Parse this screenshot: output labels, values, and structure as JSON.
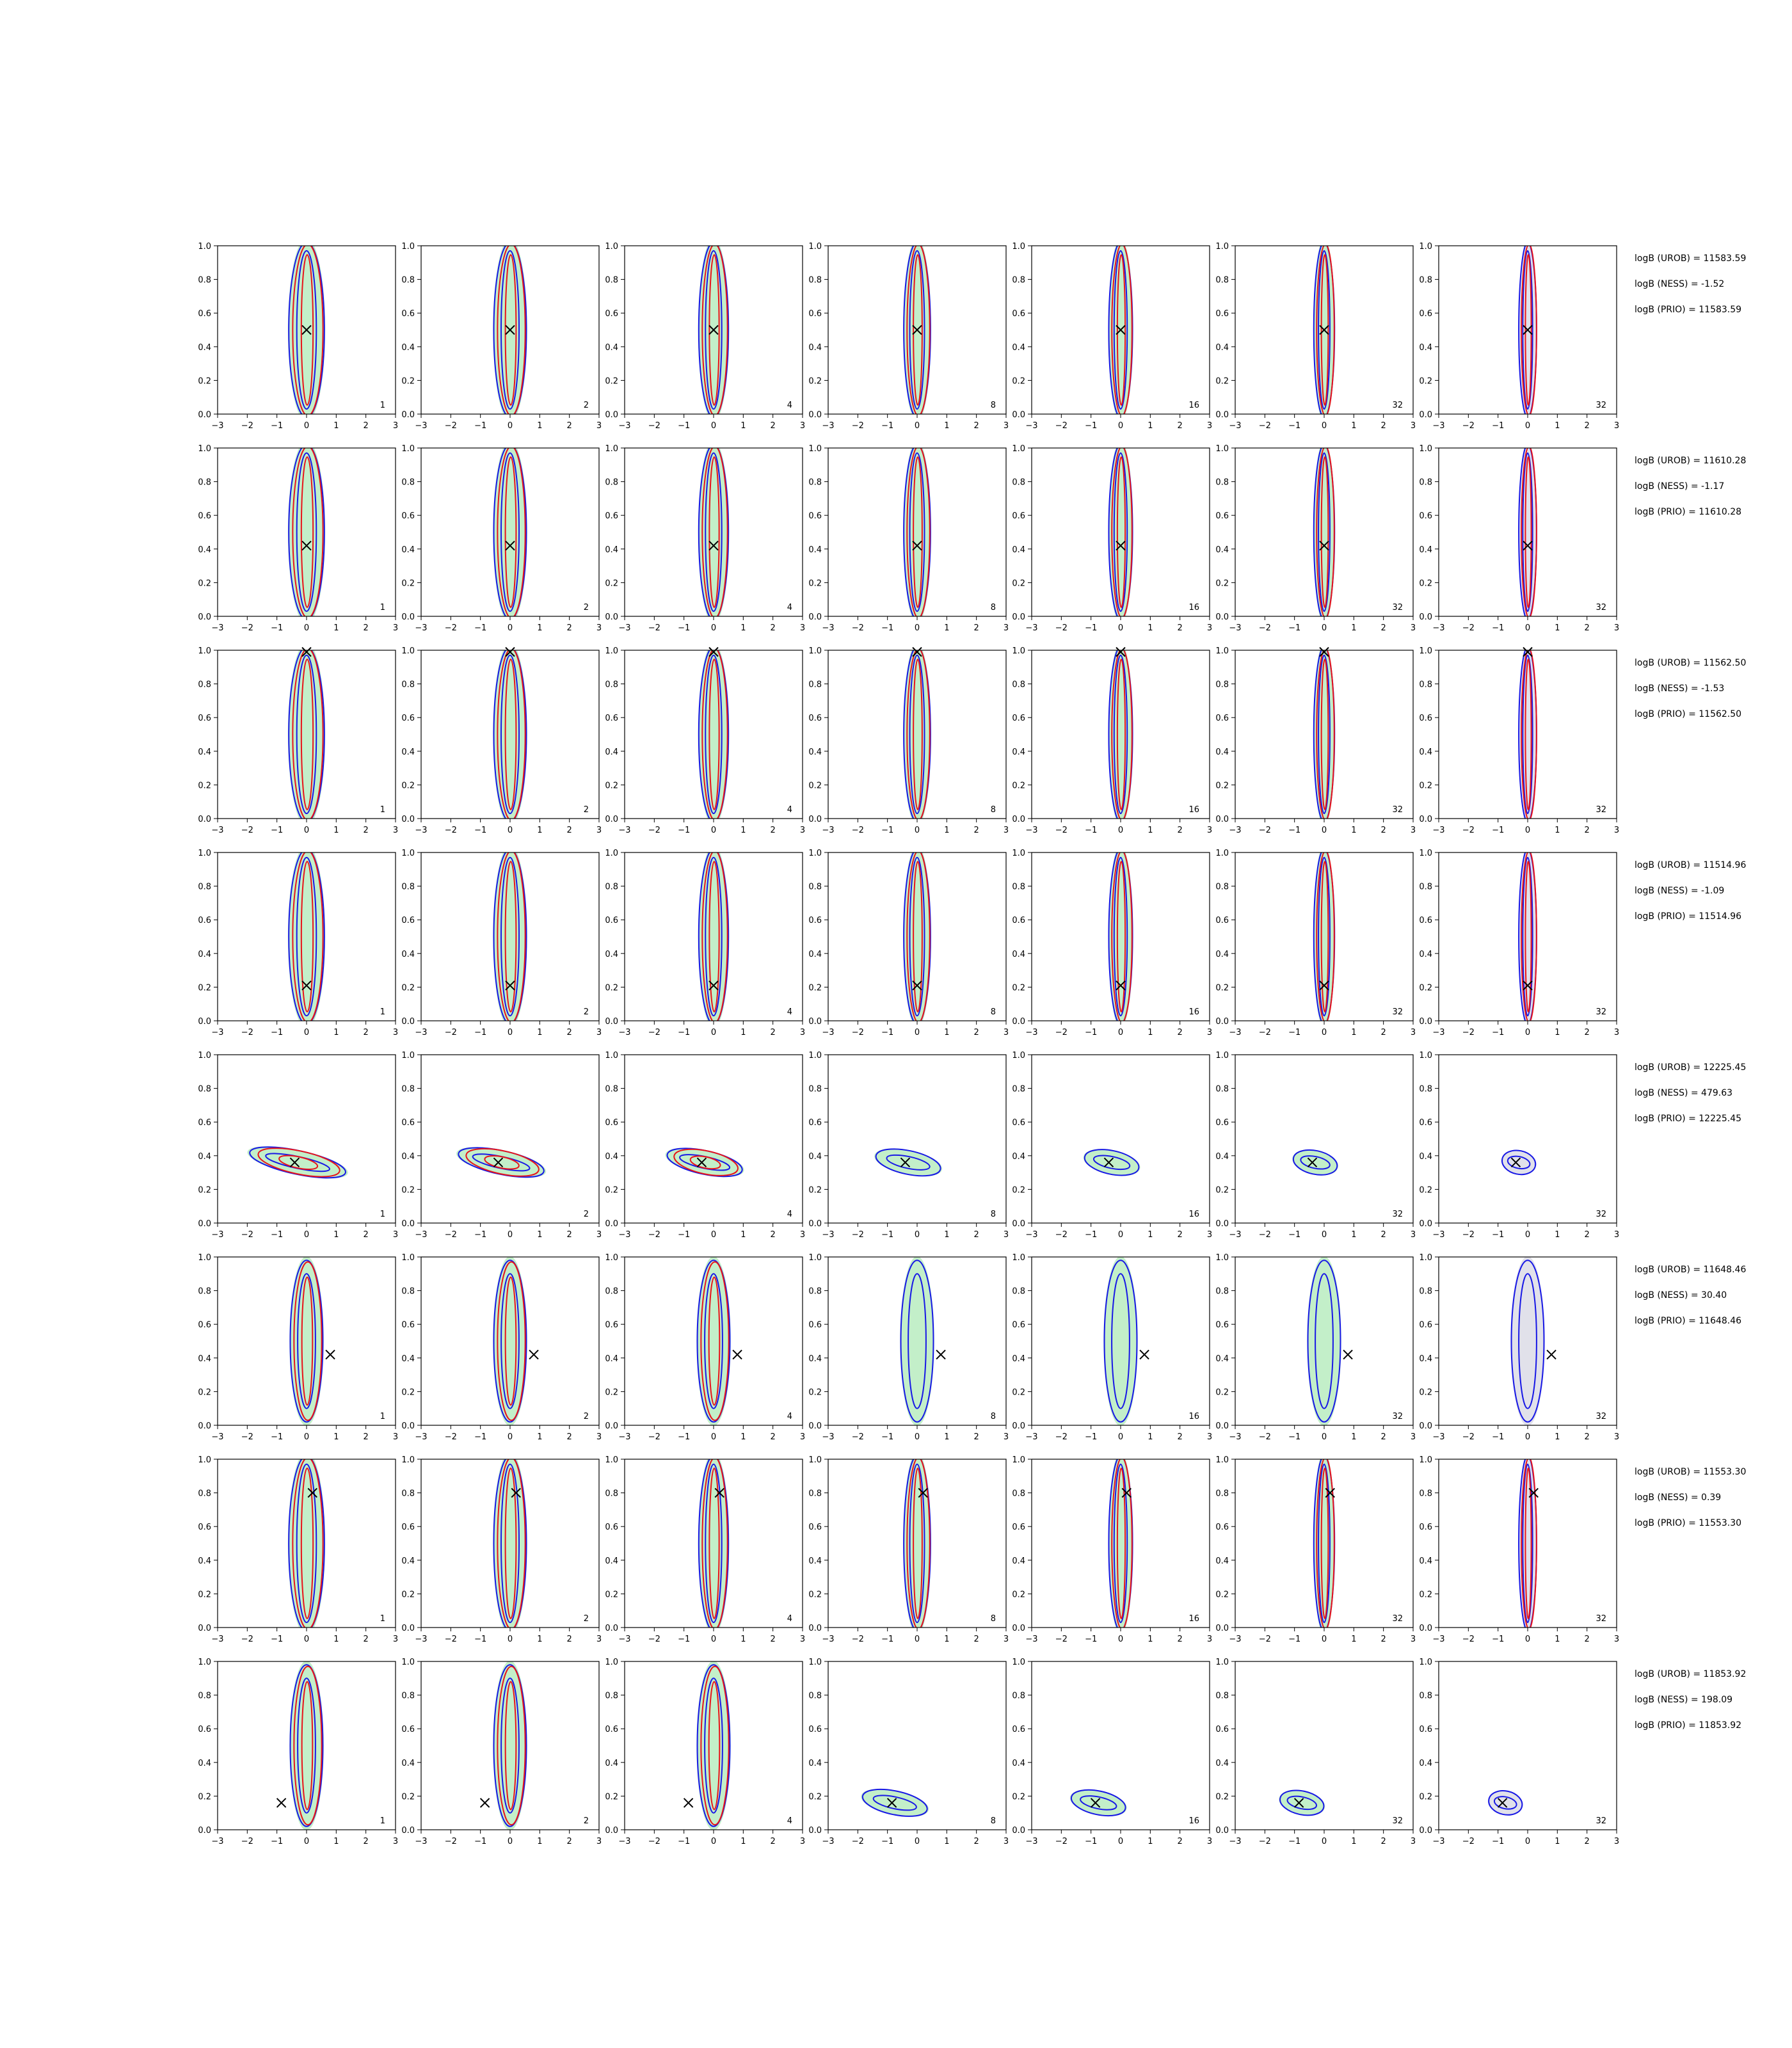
{
  "colors": {
    "red": "#e8141a",
    "blue": "#1818e6",
    "green_fill": "#b8ecc0",
    "grey_fill": "#dcdce6",
    "marker": "#000000"
  },
  "axes": {
    "xlim": [
      -3,
      3
    ],
    "ylim": [
      0.0,
      1.0
    ],
    "xticks": [
      "−3",
      "−2",
      "−1",
      "0",
      "1",
      "2",
      "3"
    ],
    "yticks": [
      "0.0",
      "0.2",
      "0.4",
      "0.6",
      "0.8",
      "1.0"
    ]
  },
  "columns": [
    "1",
    "2",
    "4",
    "8",
    "16",
    "32",
    "32"
  ],
  "chart_data": {
    "type": "scatter",
    "layout": "grid of 8 rows x 7 columns of 2D density contour panels",
    "xlim": [
      -3,
      3
    ],
    "ylim": [
      0,
      1
    ],
    "grid": false,
    "rows": [
      {
        "truth": [
          0.0,
          0.5
        ],
        "stats": [
          "logB (UROB) = 11583.59",
          "logB (NESS) = -1.52",
          "logB (PRIO) = 11583.59"
        ]
      },
      {
        "truth": [
          0.0,
          0.42
        ],
        "stats": [
          "logB (UROB) = 11610.28",
          "logB (NESS) = -1.17",
          "logB (PRIO) = 11610.28"
        ]
      },
      {
        "truth": [
          0.0,
          0.99
        ],
        "stats": [
          "logB (UROB) = 11562.50",
          "logB (NESS) = -1.53",
          "logB (PRIO) = 11562.50"
        ]
      },
      {
        "truth": [
          0.0,
          0.21
        ],
        "stats": [
          "logB (UROB) = 11514.96",
          "logB (NESS) = -1.09",
          "logB (PRIO) = 11514.96"
        ]
      },
      {
        "truth": [
          -0.4,
          0.36
        ],
        "stats": [
          "logB (UROB) = 12225.45",
          "logB (NESS) = 479.63",
          "logB (PRIO) = 12225.45"
        ]
      },
      {
        "truth": [
          0.8,
          0.42
        ],
        "stats": [
          "logB (UROB) = 11648.46",
          "logB (NESS) = 30.40",
          "logB (PRIO) = 11648.46"
        ]
      },
      {
        "truth": [
          0.2,
          0.8
        ],
        "stats": [
          "logB (UROB) = 11553.30",
          "logB (NESS) = 0.39",
          "logB (PRIO) = 11553.30"
        ]
      },
      {
        "truth": [
          -0.85,
          0.16
        ],
        "stats": [
          "logB (UROB) = 11853.92",
          "logB (NESS) = 198.09",
          "logB (PRIO) = 11853.92"
        ]
      }
    ]
  }
}
